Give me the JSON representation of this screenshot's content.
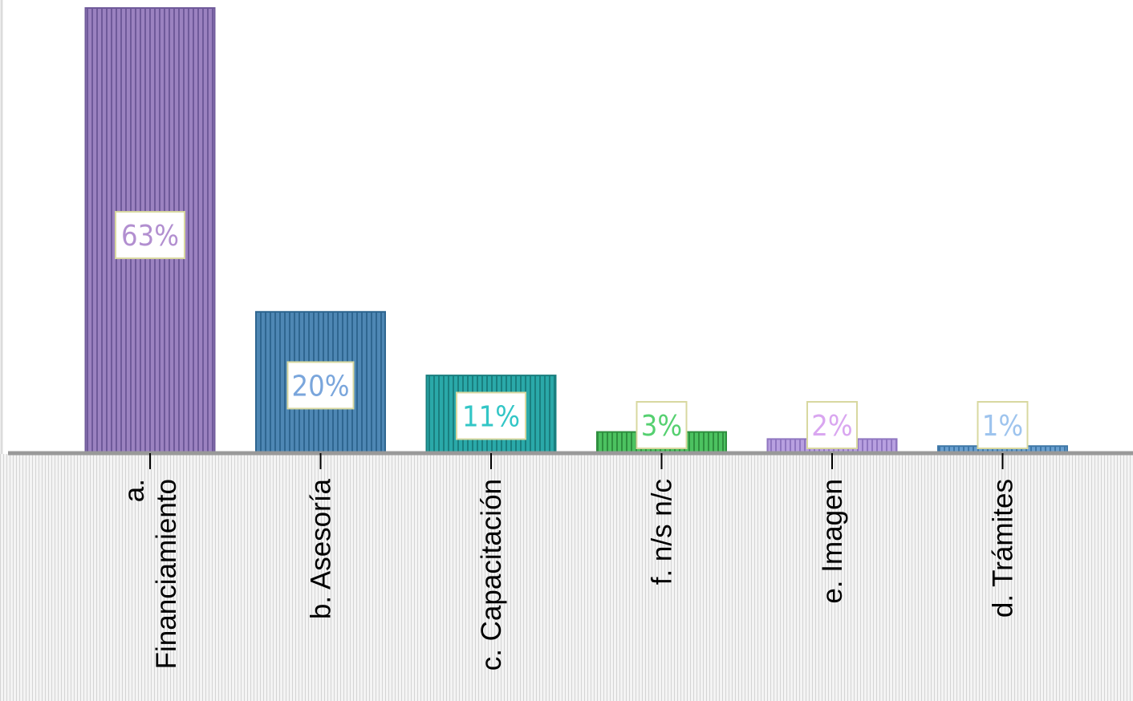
{
  "chart_data": {
    "type": "bar",
    "categories": [
      [
        "a.",
        "Financiamiento"
      ],
      [
        "b. Asesoría"
      ],
      [
        "c. Capacitación"
      ],
      [
        "f. n/s n/c"
      ],
      [
        "e. Imagen"
      ],
      [
        "d. Trámites"
      ]
    ],
    "values": [
      63,
      20,
      11,
      3,
      2,
      1
    ],
    "data_labels": [
      "63%",
      "20%",
      "11%",
      "3%",
      "2%",
      "1%"
    ],
    "unit": "%",
    "ylim": [
      0,
      63
    ],
    "grid": false,
    "legend": "none",
    "bar_colors": [
      "#9b82c0",
      "#4e87b4",
      "#2aa9a9",
      "#4cc260",
      "#b8a0e0",
      "#6aa0cf"
    ],
    "bar_stripe_colors": [
      "#6f5a9a",
      "#2f6690",
      "#1a7f7f",
      "#2f8f3f",
      "#8f76c0",
      "#3f78a8"
    ],
    "label_text_colors": [
      "#b28fd0",
      "#7aa6dc",
      "#33c6c6",
      "#55d070",
      "#d9a6f0",
      "#9ec4ee"
    ],
    "label_box_border": "#d8d8a0",
    "axis_color": "#999999",
    "axis_band_stripe": "#d4d4d4"
  }
}
